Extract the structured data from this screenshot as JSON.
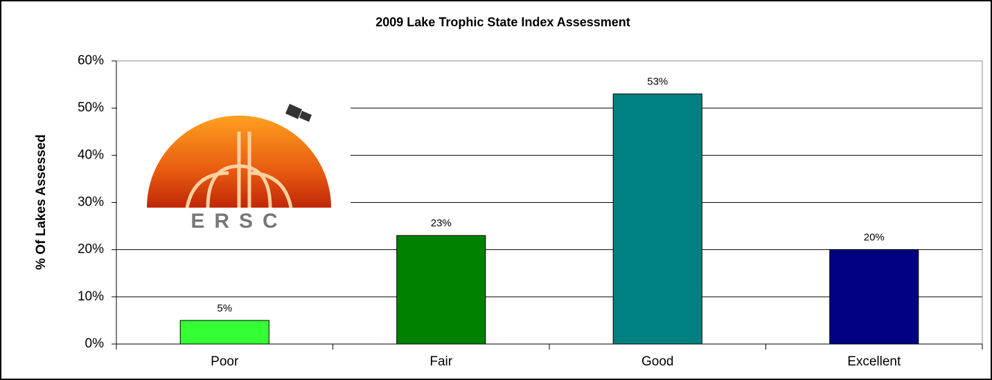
{
  "chart_data": {
    "type": "bar",
    "title": "2009 Lake Trophic State Index Assessment",
    "y_label": "% Of Lakes Assessed",
    "logo_text": "ERSC",
    "categories": [
      "Poor",
      "Fair",
      "Good",
      "Excellent"
    ],
    "values": [
      5,
      23,
      53,
      20
    ],
    "value_labels": [
      "5%",
      "23%",
      "53%",
      "20%"
    ],
    "colors": [
      "#33ff33",
      "#008000",
      "#008080",
      "#000080"
    ],
    "ylim": [
      0,
      60
    ],
    "yticks": [
      {
        "value": 0,
        "label": "0%"
      },
      {
        "value": 10,
        "label": "10%"
      },
      {
        "value": 20,
        "label": "20%"
      },
      {
        "value": 30,
        "label": "30%"
      },
      {
        "value": 40,
        "label": "40%"
      },
      {
        "value": 50,
        "label": "50%"
      },
      {
        "value": 60,
        "label": "60%"
      }
    ],
    "grid": true
  }
}
